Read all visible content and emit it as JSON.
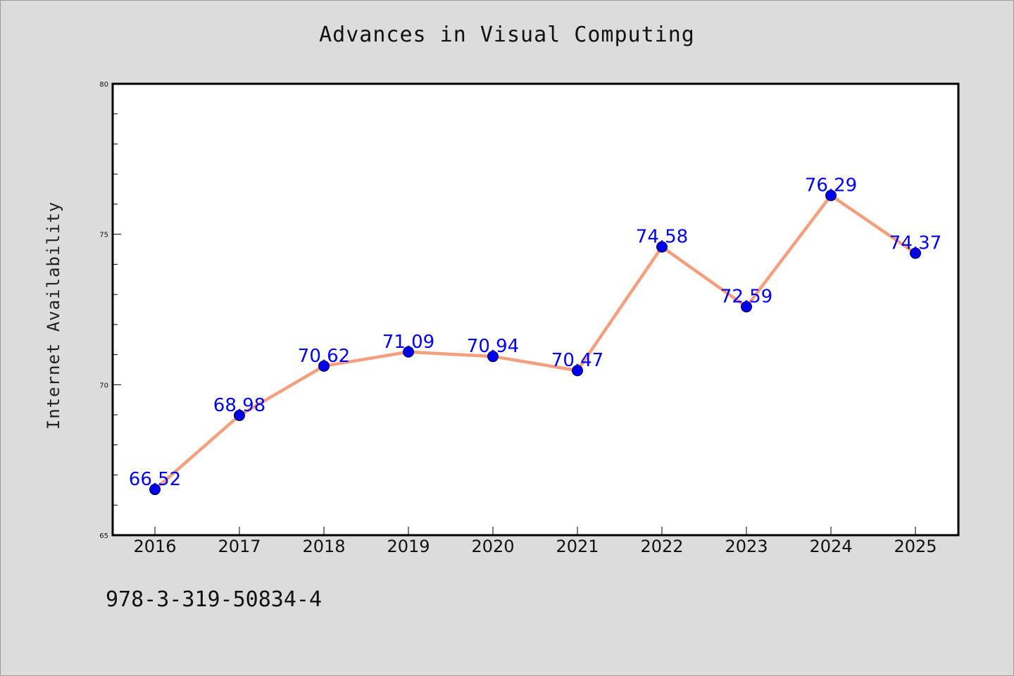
{
  "chart_data": {
    "type": "line",
    "title": "Advances in Visual Computing",
    "xlabel": "",
    "ylabel": "Internet Availability",
    "categories": [
      "2016",
      "2017",
      "2018",
      "2019",
      "2020",
      "2021",
      "2022",
      "2023",
      "2024",
      "2025"
    ],
    "series": [
      {
        "values": [
          66.52,
          68.98,
          70.62,
          71.09,
          70.94,
          70.47,
          74.58,
          72.59,
          76.29,
          74.37
        ],
        "labels": [
          "66.52",
          "68.98",
          "70.62",
          "71.09",
          "70.94",
          "70.47",
          "74.58",
          "72.59",
          "76.29",
          "74.37"
        ],
        "line_color": "#f4a07e",
        "marker_color": "#0000ee",
        "label_color": "#0000ff"
      }
    ],
    "ylim": [
      65,
      80
    ],
    "yticks": [
      "65",
      "70",
      "75",
      "80"
    ],
    "grid": false,
    "legend": "none"
  },
  "footer": {
    "isbn": "978-3-319-50834-4"
  }
}
